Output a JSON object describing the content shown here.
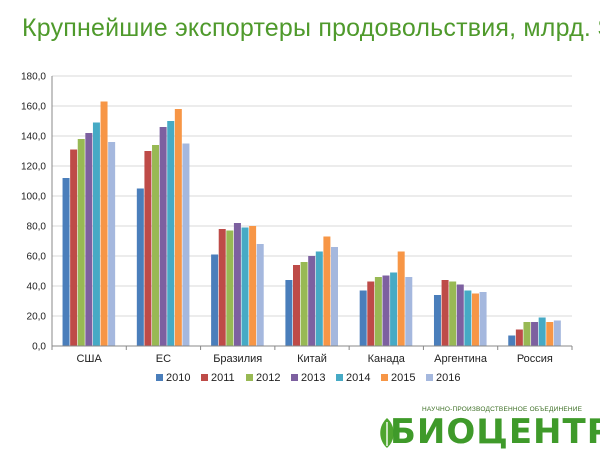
{
  "title": "Крупнейшие экспортеры продовольствия, млрд. $",
  "logo": {
    "caption": "НАУЧНО-ПРОИЗВОДСТВЕННОЕ ОБЪЕДИНЕНИЕ",
    "text": "БИОЦЕНТР"
  },
  "chart_data": {
    "type": "bar",
    "categories": [
      "США",
      "ЕС",
      "Бразилия",
      "Китай",
      "Канада",
      "Аргентина",
      "Россия"
    ],
    "series": [
      {
        "name": "2010",
        "color": "#4a7ebb",
        "values": [
          112,
          105,
          61,
          44,
          37,
          34,
          7
        ]
      },
      {
        "name": "2011",
        "color": "#be4b48",
        "values": [
          131,
          130,
          78,
          54,
          43,
          44,
          11
        ]
      },
      {
        "name": "2012",
        "color": "#98b954",
        "values": [
          138,
          134,
          77,
          56,
          46,
          43,
          16
        ]
      },
      {
        "name": "2013",
        "color": "#7d60a0",
        "values": [
          142,
          146,
          82,
          60,
          47,
          41,
          16
        ]
      },
      {
        "name": "2014",
        "color": "#46aac5",
        "values": [
          149,
          150,
          79,
          63,
          49,
          37,
          19
        ]
      },
      {
        "name": "2015",
        "color": "#f79646",
        "values": [
          163,
          158,
          80,
          73,
          63,
          35,
          16
        ]
      },
      {
        "name": "2016",
        "color": "#a5b8de",
        "values": [
          136,
          135,
          68,
          66,
          46,
          36,
          17
        ]
      }
    ],
    "ylim": [
      0,
      180
    ],
    "yticks": [
      "0,0",
      "20,0",
      "40,0",
      "60,0",
      "80,0",
      "100,0",
      "120,0",
      "140,0",
      "160,0",
      "180,0"
    ],
    "grid": true,
    "legend": "bottom"
  }
}
